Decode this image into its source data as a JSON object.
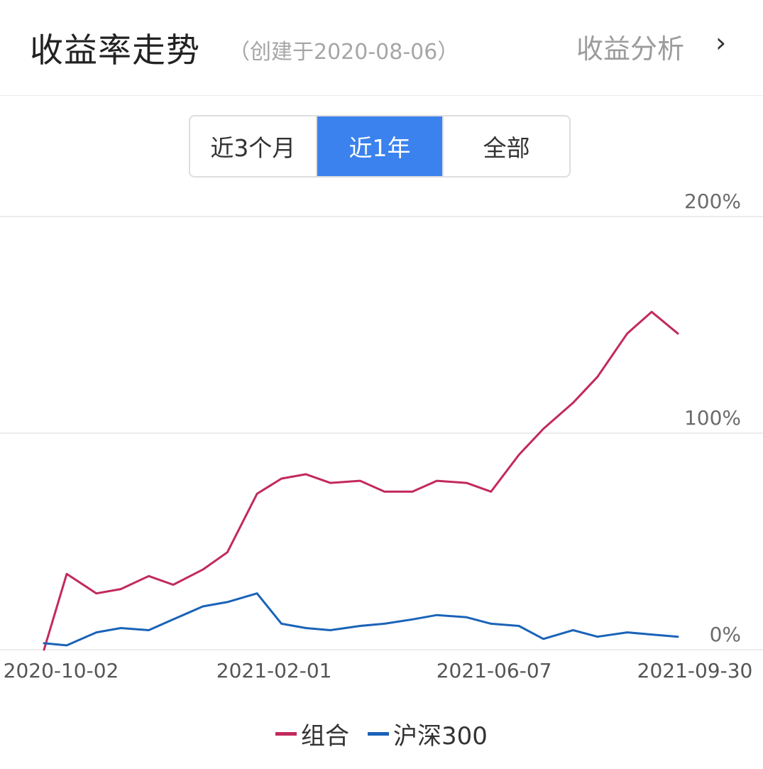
{
  "header": {
    "title": "收益率走势",
    "subtitle": "（创建于2020-08-06）",
    "analysis_link": "收益分析",
    "chevron": "›"
  },
  "tabs": [
    {
      "label": "近3个月",
      "active": false
    },
    {
      "label": "近1年",
      "active": true
    },
    {
      "label": "全部",
      "active": false
    }
  ],
  "colors": {
    "portfolio": "#c2295e",
    "index": "#1a63b8",
    "active_tab": "#3b82ee",
    "grid": "#e6e6e6"
  },
  "chart_data": {
    "type": "line",
    "x": [
      "2020-10-02",
      "2020-10-15",
      "2020-11-01",
      "2020-11-15",
      "2020-12-01",
      "2020-12-15",
      "2021-01-01",
      "2021-01-15",
      "2021-02-01",
      "2021-02-15",
      "2021-03-01",
      "2021-03-15",
      "2021-04-01",
      "2021-04-15",
      "2021-05-01",
      "2021-05-15",
      "2021-06-01",
      "2021-06-15",
      "2021-07-01",
      "2021-07-15",
      "2021-08-01",
      "2021-08-15",
      "2021-09-01",
      "2021-09-15",
      "2021-09-30"
    ],
    "x_ticks": [
      "2020-10-02",
      "2021-02-01",
      "2021-06-07",
      "2021-09-30"
    ],
    "y_ticks": [
      "0%",
      "100%",
      "200%"
    ],
    "ylim": [
      0,
      200
    ],
    "grid": true,
    "legend_position": "bottom",
    "series": [
      {
        "name": "组合",
        "values": [
          0,
          35,
          26,
          28,
          34,
          30,
          37,
          45,
          72,
          79,
          81,
          77,
          78,
          73,
          73,
          78,
          77,
          73,
          90,
          102,
          114,
          126,
          146,
          156,
          146
        ]
      },
      {
        "name": "沪深300",
        "values": [
          3,
          2,
          8,
          10,
          9,
          14,
          20,
          22,
          26,
          12,
          10,
          9,
          11,
          12,
          14,
          16,
          15,
          12,
          11,
          5,
          9,
          6,
          8,
          7,
          6
        ]
      }
    ]
  },
  "legend": [
    {
      "label": "组合"
    },
    {
      "label": "沪深300"
    }
  ]
}
